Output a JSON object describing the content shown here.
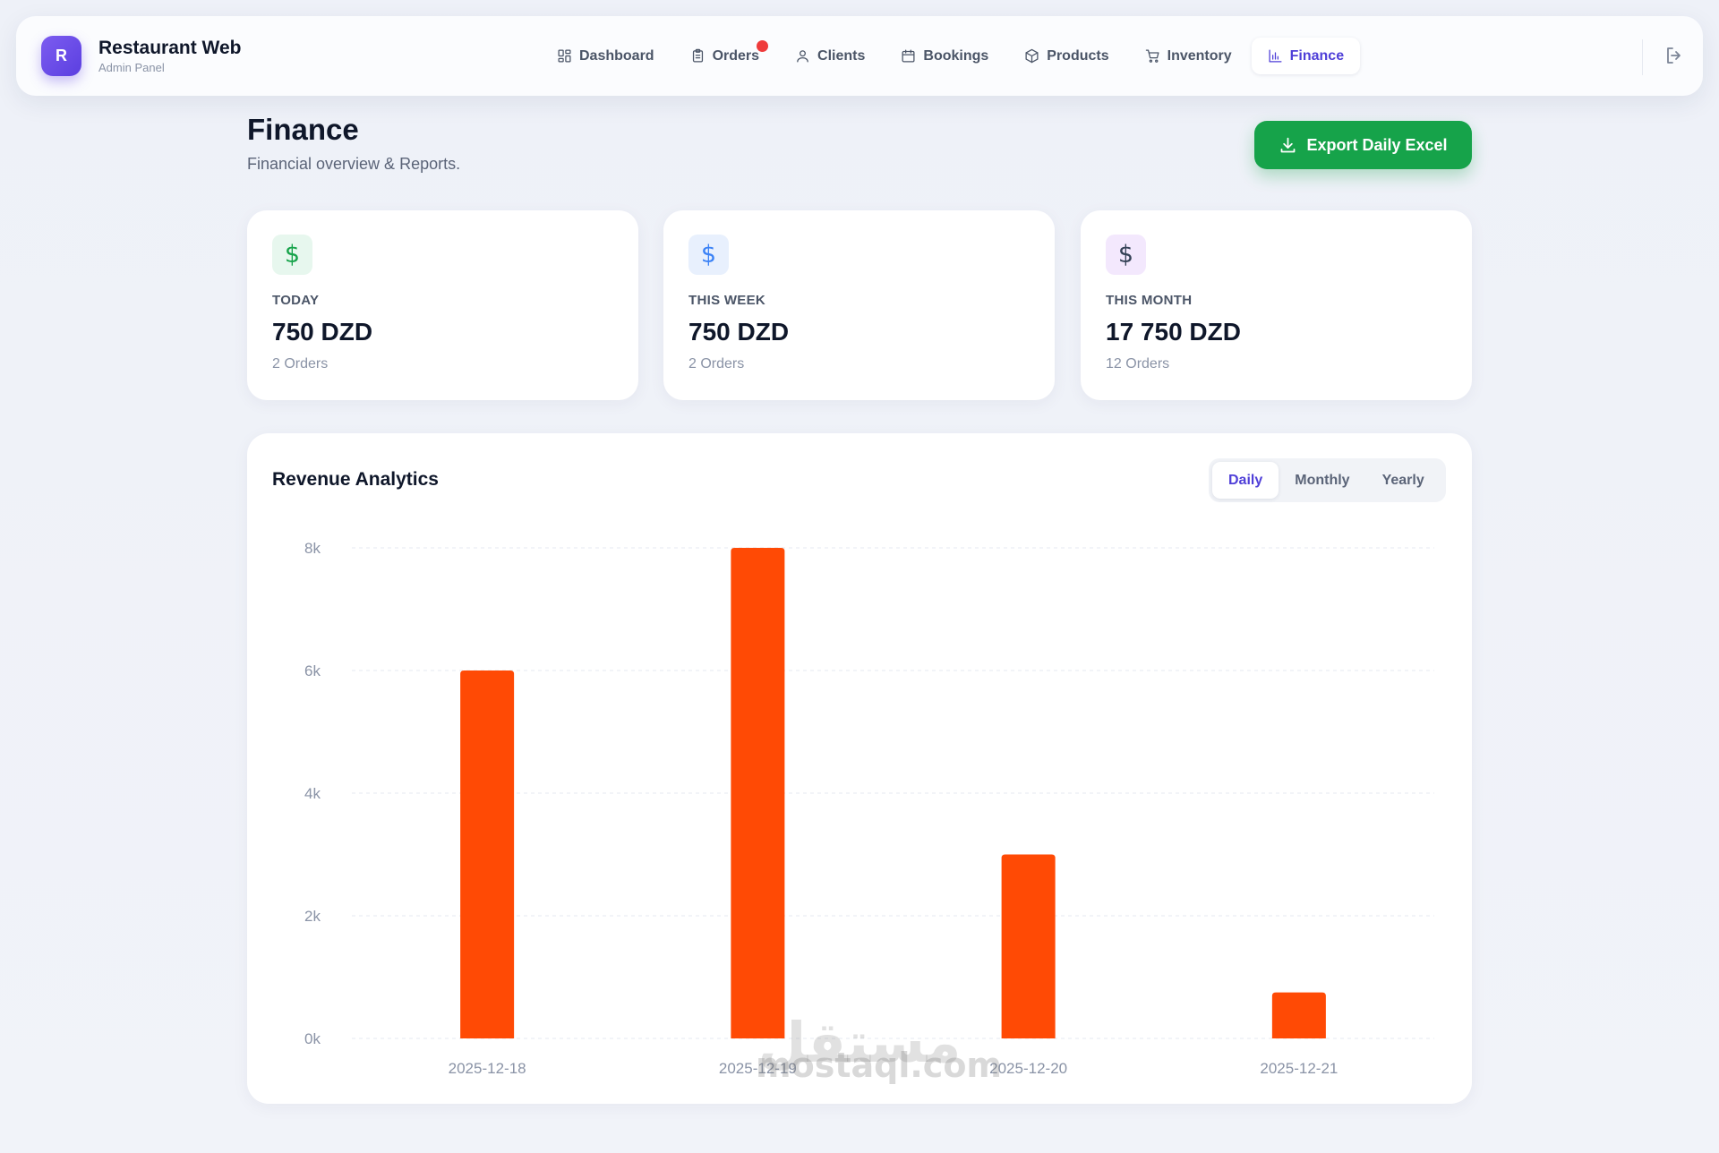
{
  "brand": {
    "initial": "R",
    "title": "Restaurant Web",
    "subtitle": "Admin Panel"
  },
  "nav": {
    "items": [
      {
        "label": "Dashboard",
        "icon": "dashboard-icon"
      },
      {
        "label": "Orders",
        "icon": "clipboard-icon",
        "badge_color": "#ef3b3b"
      },
      {
        "label": "Clients",
        "icon": "user-icon"
      },
      {
        "label": "Bookings",
        "icon": "calendar-icon"
      },
      {
        "label": "Products",
        "icon": "package-icon"
      },
      {
        "label": "Inventory",
        "icon": "cart-icon"
      },
      {
        "label": "Finance",
        "icon": "bar-chart-icon",
        "active": true
      }
    ],
    "logout_icon": "logout-icon"
  },
  "page": {
    "title": "Finance",
    "subtitle": "Financial overview & Reports."
  },
  "export_button": {
    "label": "Export Daily Excel",
    "icon": "download-icon",
    "color": "#16a34a"
  },
  "stats": [
    {
      "label": "TODAY",
      "value": "750 DZD",
      "sub": "2 Orders",
      "icon": "dollar-icon",
      "icon_color": "#16a34a",
      "icon_bg": "#e7f7ee"
    },
    {
      "label": "THIS WEEK",
      "value": "750 DZD",
      "sub": "2 Orders",
      "icon": "dollar-icon",
      "icon_color": "#3b82f6",
      "icon_bg": "#e8f0fd"
    },
    {
      "label": "THIS MONTH",
      "value": "17 750 DZD",
      "sub": "12 Orders",
      "icon": "dollar-icon",
      "icon_color": "#334155",
      "icon_bg": "#f3e8fd"
    }
  ],
  "analytics": {
    "title": "Revenue Analytics",
    "tabs": [
      {
        "label": "Daily",
        "active": true
      },
      {
        "label": "Monthly"
      },
      {
        "label": "Yearly"
      }
    ]
  },
  "chart_data": {
    "type": "bar",
    "title": "Revenue Analytics",
    "categories": [
      "2025-12-18",
      "2025-12-19",
      "2025-12-20",
      "2025-12-21"
    ],
    "values": [
      6000,
      8000,
      3000,
      750
    ],
    "xlabel": "",
    "ylabel": "",
    "ylim": [
      0,
      8000
    ],
    "yticks": [
      0,
      2000,
      4000,
      6000,
      8000
    ],
    "ytick_labels": [
      "0k",
      "2k",
      "4k",
      "6k",
      "8k"
    ],
    "grid": true,
    "bar_color": "#ff4a05"
  },
  "watermark": {
    "arabic": "مستقل",
    "text": "mostaql.com"
  }
}
